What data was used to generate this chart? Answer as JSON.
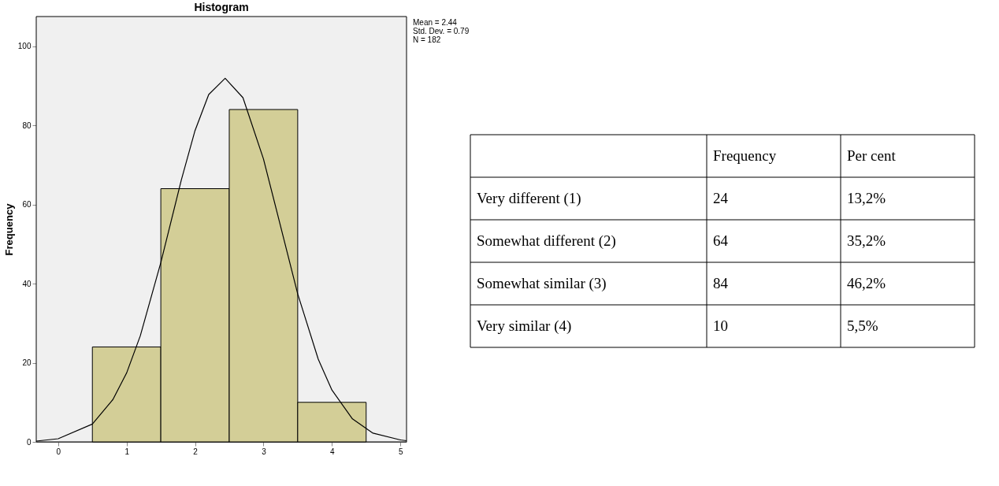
{
  "chart_data": [
    {
      "type": "histogram",
      "title": "Histogram",
      "ylabel": "Frequency",
      "bins": [
        0.5,
        1.5,
        2.5,
        3.5,
        4.5
      ],
      "values": [
        24,
        64,
        84,
        10
      ],
      "color": "#d3ce97",
      "series": [
        {
          "type": "line",
          "color": "#000000",
          "x": [
            -0.32,
            0,
            0.5,
            0.8,
            1.0,
            1.2,
            1.5,
            1.8,
            2.0,
            2.2,
            2.44,
            2.7,
            3.0,
            3.2,
            3.5,
            3.8,
            4.0,
            4.3,
            4.6,
            5.0,
            5.09
          ],
          "values": [
            0.2,
            0.8,
            4.5,
            10.7,
            17.4,
            26.8,
            45.3,
            66.2,
            78.7,
            87.8,
            91.9,
            87.0,
            71.5,
            57.9,
            37.4,
            20.9,
            13.1,
            5.8,
            2.2,
            0.5,
            0.3
          ]
        }
      ],
      "xlim": [
        -0.32,
        5.09
      ],
      "xticks": [
        0,
        1,
        2,
        3,
        4,
        5
      ],
      "ylim": [
        0,
        107.5
      ],
      "yticks": [
        0,
        20,
        40,
        60,
        80,
        100
      ],
      "annotations": [
        "Mean = 2.44",
        "Std. Dev. = 0.79",
        "N = 182"
      ]
    },
    {
      "type": "other",
      "categories": [
        "Very different (1)",
        "Somewhat different (2)",
        "Somewhat similar (3)",
        "Very similar (4)"
      ],
      "series": [
        {
          "name": "Frequency",
          "values": [
            24,
            64,
            84,
            10
          ],
          "value_labels": [
            "24",
            "64",
            "84",
            "10"
          ]
        },
        {
          "name": "Per cent",
          "values": [
            13.2,
            35.2,
            46.2,
            5.5
          ],
          "value_labels": [
            "13,2%",
            "35,2%",
            "46,2%",
            "5,5%"
          ]
        }
      ]
    }
  ]
}
